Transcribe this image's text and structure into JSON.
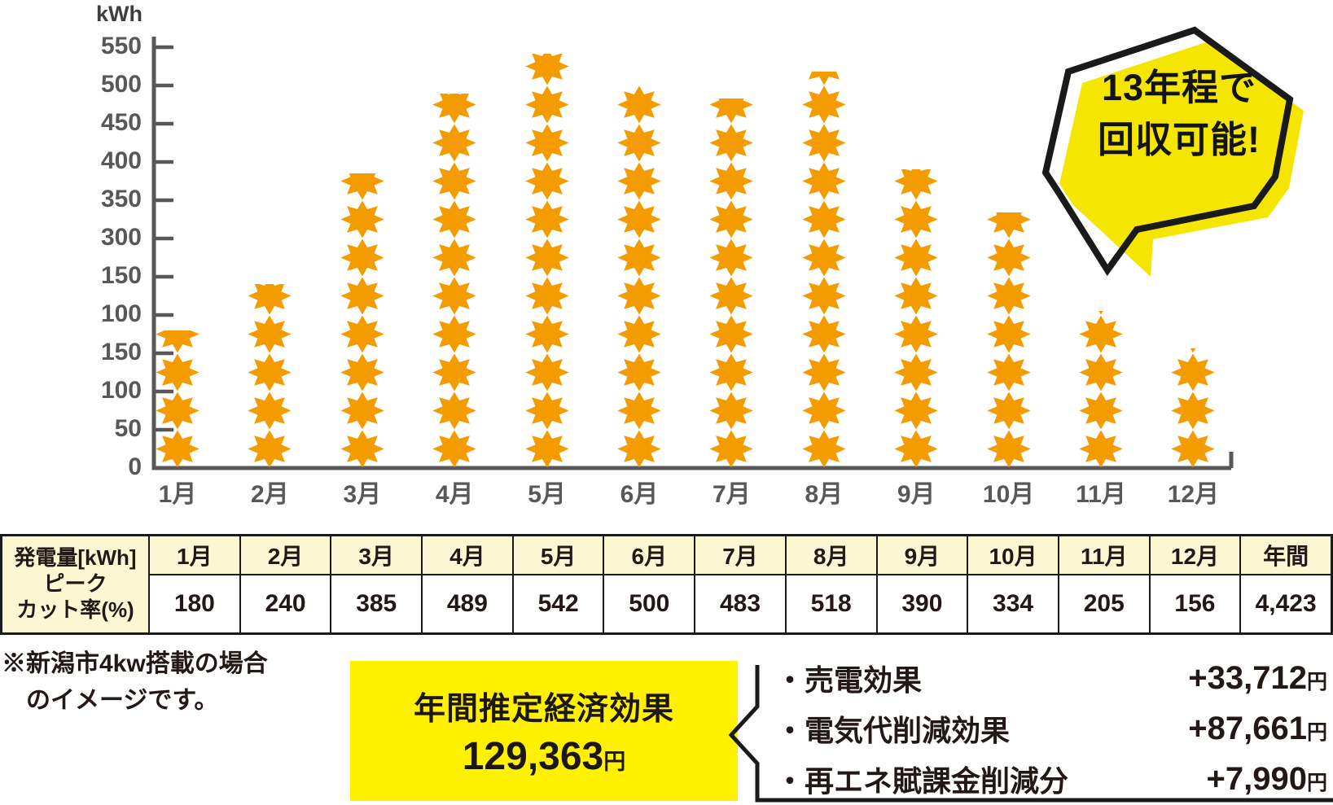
{
  "chart": {
    "unit_label": "kWh",
    "y_tick_labels": [
      "550",
      "500",
      "450",
      "400",
      "350",
      "300",
      "150",
      "100",
      "150",
      "100",
      "50",
      "0"
    ],
    "axis_color": "#595757",
    "sun_color": "#F49B00"
  },
  "chart_data": {
    "type": "bar",
    "title": "",
    "xlabel": "",
    "ylabel": "kWh",
    "categories": [
      "1月",
      "2月",
      "3月",
      "4月",
      "5月",
      "6月",
      "7月",
      "8月",
      "9月",
      "10月",
      "11月",
      "12月"
    ],
    "values": [
      180,
      240,
      385,
      489,
      542,
      500,
      483,
      518,
      390,
      334,
      205,
      156
    ],
    "unit": "kWh",
    "ylim": [
      0,
      550
    ],
    "y_tick_labels_as_printed": [
      "550",
      "500",
      "450",
      "400",
      "350",
      "300",
      "150",
      "100",
      "150",
      "100",
      "50",
      "0"
    ],
    "grid": false,
    "legend": "none",
    "pictogram": "sun-icon",
    "kwh_per_pictogram": 50,
    "annotation": "13年程で回収可能!"
  },
  "bubble": {
    "line1": "13年程で",
    "line2": "回収可能!",
    "fill_color": "#F5E600",
    "outline_color": "#1A1A1A"
  },
  "table": {
    "row_header_lines": [
      "発電量[kWh]",
      "ピーク",
      "カット率(%)"
    ],
    "columns": [
      "1月",
      "2月",
      "3月",
      "4月",
      "5月",
      "6月",
      "7月",
      "8月",
      "9月",
      "10月",
      "11月",
      "12月",
      "年間"
    ],
    "values": [
      "180",
      "240",
      "385",
      "489",
      "542",
      "500",
      "483",
      "518",
      "390",
      "334",
      "205",
      "156",
      "4,423"
    ],
    "header_bg": "#FBF7D3"
  },
  "note": {
    "line1": "※新潟市4kw搭載の場合",
    "line2": "のイメージです。"
  },
  "economic_box": {
    "title": "年間推定経済効果",
    "amount": "129,363",
    "unit": "円",
    "bg": "#FFF100"
  },
  "breakdown": {
    "items": [
      {
        "label": "・売電効果",
        "value": "+33,712",
        "unit": "円"
      },
      {
        "label": "・電気代削減効果",
        "value": "+87,661",
        "unit": "円"
      },
      {
        "label": "・再エネ賦課金削減分",
        "value": "+7,990",
        "unit": "円"
      }
    ]
  }
}
